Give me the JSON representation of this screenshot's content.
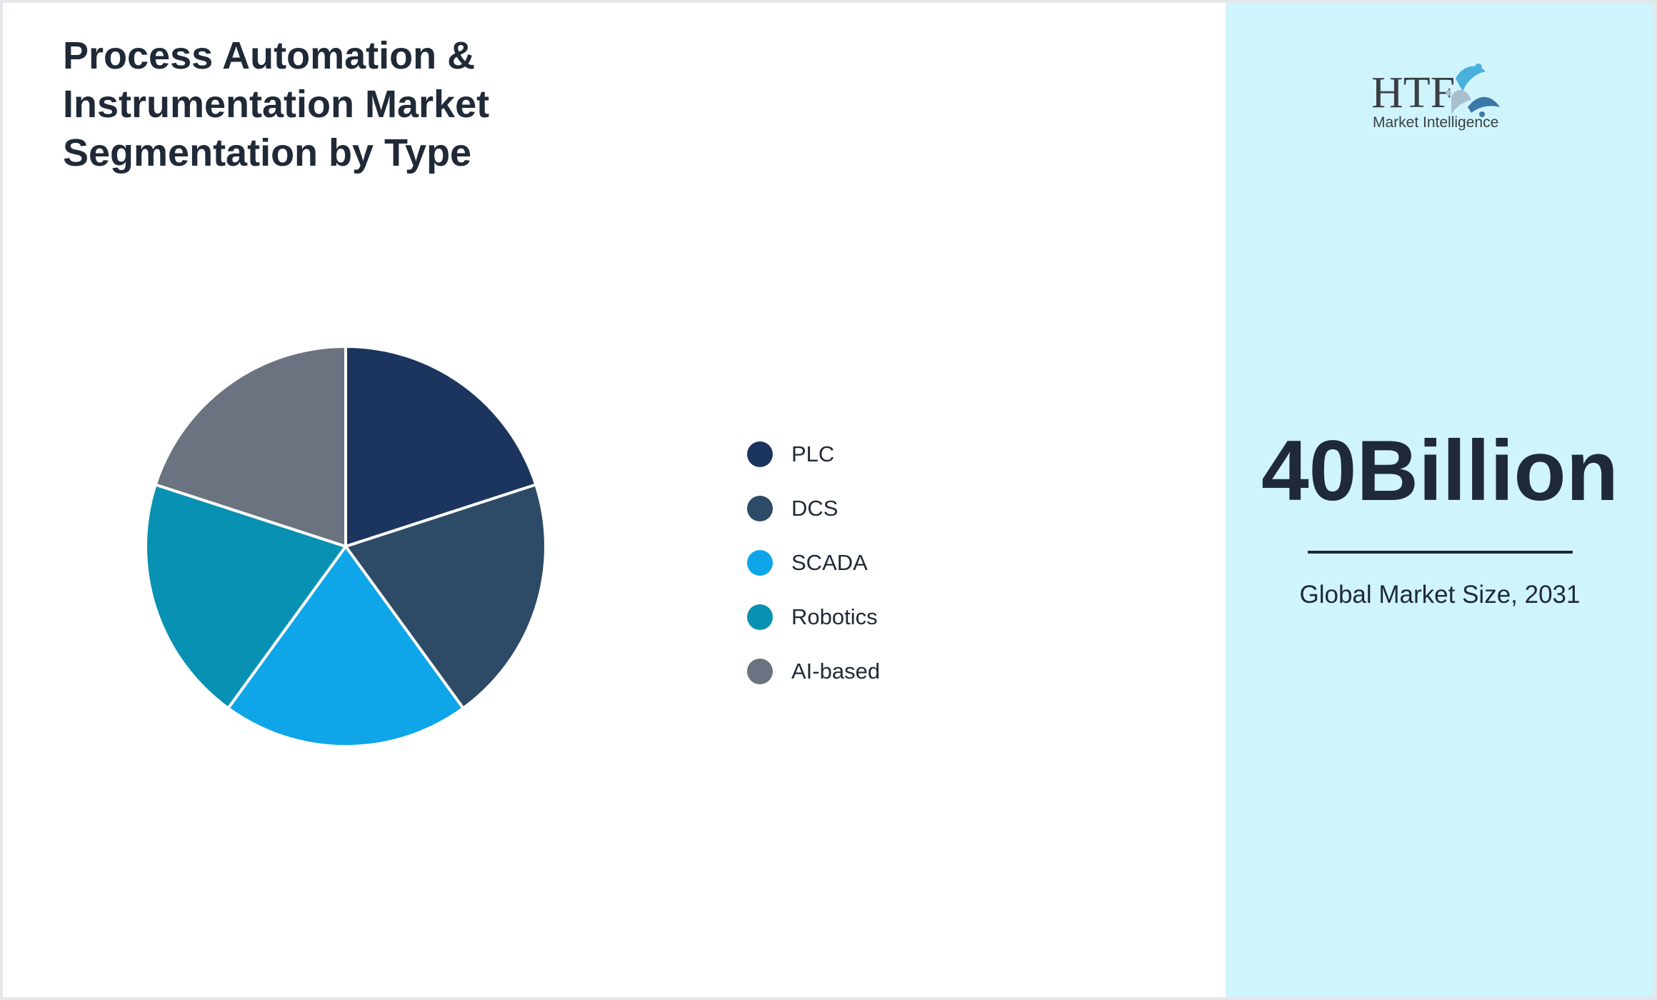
{
  "title": "Process Automation & Instrumentation Market Segmentation by Type",
  "chart_data": {
    "type": "pie",
    "title": "Process Automation & Instrumentation Market Segmentation by Type",
    "categories": [
      "PLC",
      "DCS",
      "SCADA",
      "Robotics",
      "AI-based"
    ],
    "values": [
      20,
      20,
      20,
      20,
      20
    ],
    "colors": [
      "#1c355e",
      "#2d4a66",
      "#0ea5e9",
      "#0891b2",
      "#6b7280"
    ],
    "legend_position": "right"
  },
  "side": {
    "logo_text": "HTF",
    "logo_subtext": "Market Intelligence",
    "market_size": "40Billion",
    "market_label": "Global Market Size, 2031"
  }
}
